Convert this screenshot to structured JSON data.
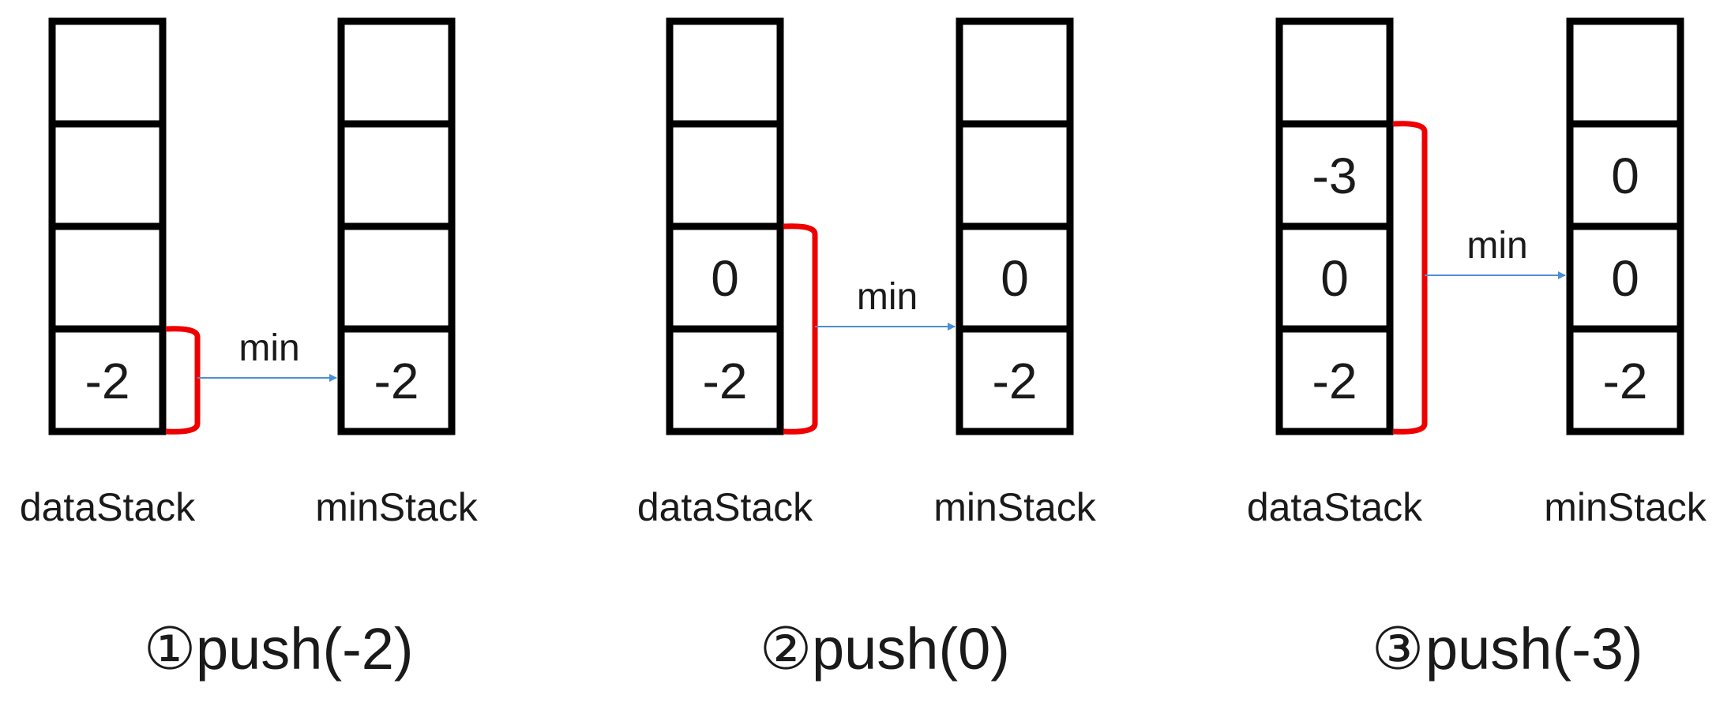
{
  "colors": {
    "stack_border": "#000000",
    "bracket": "#ee0000",
    "arrow": "#4a8fd8",
    "text": "#1a1a1a"
  },
  "panels": [
    {
      "step_number": "①",
      "step_label": "push(-2)",
      "data_stack_label": "dataStack",
      "min_stack_label": "minStack",
      "arrow_label": "min",
      "data_stack": [
        "",
        "",
        "",
        "-2"
      ],
      "min_stack": [
        "",
        "",
        "",
        "-2"
      ],
      "bracket_span_cells": 1
    },
    {
      "step_number": "②",
      "step_label": "push(0)",
      "data_stack_label": "dataStack",
      "min_stack_label": "minStack",
      "arrow_label": "min",
      "data_stack": [
        "",
        "",
        "0",
        "-2"
      ],
      "min_stack": [
        "",
        "",
        "0",
        "-2"
      ],
      "bracket_span_cells": 2
    },
    {
      "step_number": "③",
      "step_label": "push(-3)",
      "data_stack_label": "dataStack",
      "min_stack_label": "minStack",
      "arrow_label": "min",
      "data_stack": [
        "",
        "-3",
        "0",
        "-2"
      ],
      "min_stack": [
        "",
        "0",
        "0",
        "-2"
      ],
      "bracket_span_cells": 3
    }
  ]
}
